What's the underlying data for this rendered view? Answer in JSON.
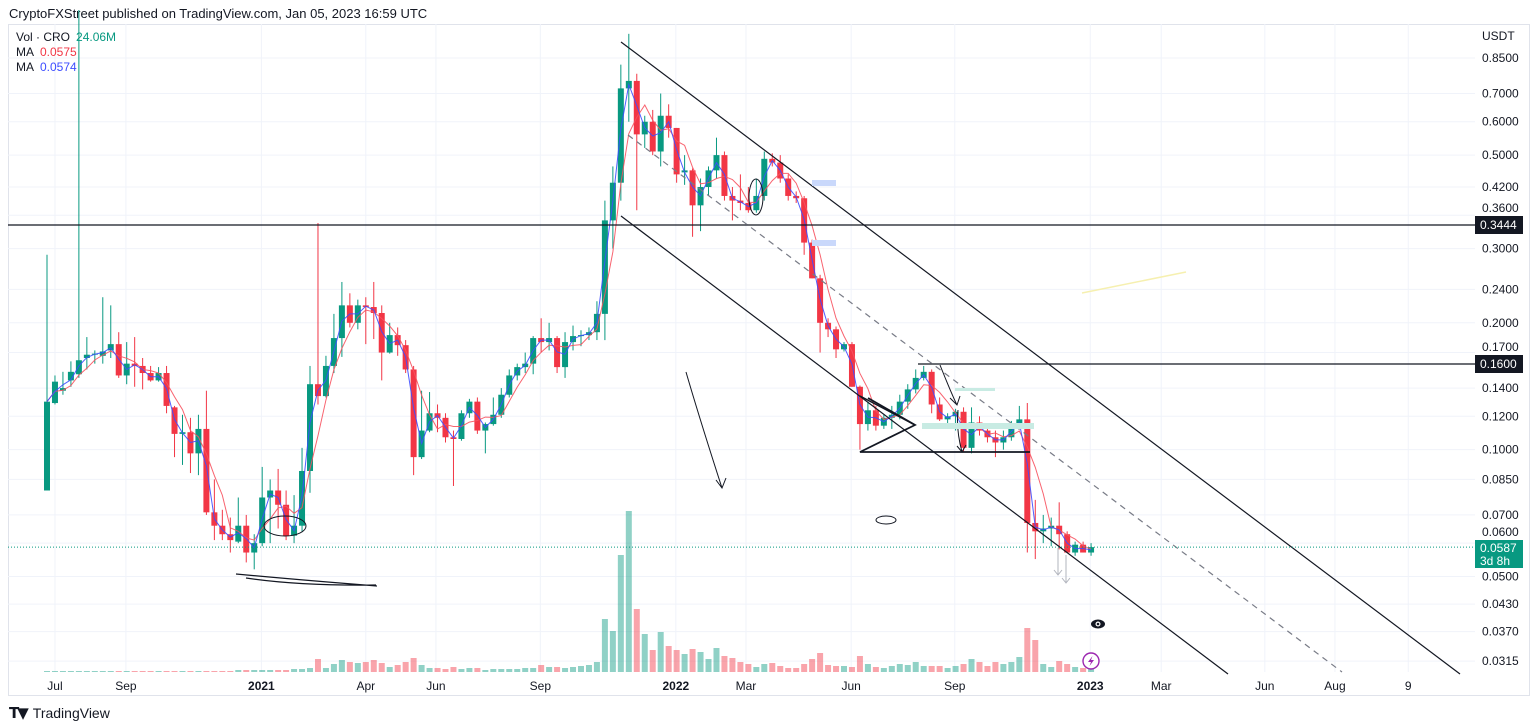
{
  "header": {
    "title": "CryptoFXStreet published on TradingView.com, Jan 05, 2023 16:59 UTC"
  },
  "legend": {
    "vol_label": "Vol · CRO",
    "vol_value": "24.06M",
    "ma1_label": "MA",
    "ma1_value": "0.0575",
    "ma2_label": "MA",
    "ma2_value": "0.0574"
  },
  "axis": {
    "currency": "USDT",
    "price_ticks": [
      "0.8500",
      "0.7000",
      "0.6000",
      "0.5000",
      "0.4200",
      "0.3600",
      "0.3000",
      "0.2400",
      "0.2000",
      "0.1700",
      "0.1400",
      "0.1200",
      "0.1000",
      "0.0850",
      "0.0700",
      "0.0600",
      "0.0500",
      "0.0430",
      "0.0370",
      "0.0315"
    ],
    "time_ticks": [
      {
        "label": "Jul",
        "week": 1,
        "year": false
      },
      {
        "label": "Sep",
        "week": 9.9,
        "year": false
      },
      {
        "label": "2021",
        "week": 26.9,
        "year": true
      },
      {
        "label": "Apr",
        "week": 40,
        "year": false
      },
      {
        "label": "Jun",
        "week": 48.8,
        "year": false
      },
      {
        "label": "Sep",
        "week": 61.9,
        "year": false
      },
      {
        "label": "2022",
        "week": 78.9,
        "year": true
      },
      {
        "label": "Mar",
        "week": 87.7,
        "year": false
      },
      {
        "label": "Jun",
        "week": 100.9,
        "year": false
      },
      {
        "label": "Sep",
        "week": 113.9,
        "year": false
      },
      {
        "label": "2023",
        "week": 130.9,
        "year": true
      },
      {
        "label": "Mar",
        "week": 139.8,
        "year": false
      },
      {
        "label": "Jun",
        "week": 152.8,
        "year": false
      },
      {
        "label": "Aug",
        "week": 161.6,
        "year": false
      },
      {
        "label": "9",
        "week": 170.8,
        "year": false
      }
    ]
  },
  "price_labels": {
    "level_high": {
      "value": "0.3444"
    },
    "level_low": {
      "value": "0.1600"
    },
    "last": {
      "value": "0.0587",
      "countdown": "3d 8h"
    }
  },
  "colors": {
    "up": "#089981",
    "down": "#f23645",
    "ma_red": "#f7525f",
    "ma_blue": "#3d4dff",
    "last": "#089981"
  },
  "footer": {
    "brand": "TradingView"
  },
  "chart_data": {
    "type": "candlestick",
    "symbol": "CRO/USDT",
    "interval": "1W",
    "scale": "log",
    "ylim": [
      0.0315,
      0.85
    ],
    "ohlc": [
      [
        0.08,
        0.29,
        0.08,
        0.13
      ],
      [
        0.129,
        0.15,
        0.128,
        0.145
      ],
      [
        0.138,
        0.153,
        0.135,
        0.14
      ],
      [
        0.146,
        0.162,
        0.141,
        0.153
      ],
      [
        0.151,
        1.2,
        0.148,
        0.163
      ],
      [
        0.165,
        0.185,
        0.155,
        0.168
      ],
      [
        0.168,
        0.172,
        0.16,
        0.169
      ],
      [
        0.167,
        0.23,
        0.16,
        0.171
      ],
      [
        0.172,
        0.22,
        0.165,
        0.178
      ],
      [
        0.178,
        0.19,
        0.148,
        0.15
      ],
      [
        0.15,
        0.18,
        0.143,
        0.16
      ],
      [
        0.16,
        0.185,
        0.141,
        0.158
      ],
      [
        0.158,
        0.165,
        0.139,
        0.152
      ],
      [
        0.152,
        0.158,
        0.145,
        0.146
      ],
      [
        0.146,
        0.157,
        0.145,
        0.152
      ],
      [
        0.152,
        0.158,
        0.122,
        0.127
      ],
      [
        0.126,
        0.127,
        0.096,
        0.109
      ],
      [
        0.109,
        0.121,
        0.092,
        0.11
      ],
      [
        0.11,
        0.119,
        0.088,
        0.098
      ],
      [
        0.098,
        0.121,
        0.087,
        0.112
      ],
      [
        0.112,
        0.138,
        0.07,
        0.071
      ],
      [
        0.071,
        0.085,
        0.061,
        0.066
      ],
      [
        0.066,
        0.072,
        0.061,
        0.063
      ],
      [
        0.063,
        0.069,
        0.057,
        0.061
      ],
      [
        0.0605,
        0.077,
        0.06,
        0.066
      ],
      [
        0.066,
        0.07,
        0.054,
        0.057
      ],
      [
        0.057,
        0.063,
        0.052,
        0.06
      ],
      [
        0.06,
        0.091,
        0.059,
        0.077
      ],
      [
        0.077,
        0.085,
        0.06,
        0.08
      ],
      [
        0.08,
        0.09,
        0.065,
        0.074
      ],
      [
        0.074,
        0.08,
        0.061,
        0.0625
      ],
      [
        0.0625,
        0.078,
        0.06,
        0.066
      ],
      [
        0.066,
        0.101,
        0.064,
        0.089
      ],
      [
        0.089,
        0.158,
        0.079,
        0.143
      ],
      [
        0.143,
        0.345,
        0.128,
        0.134
      ],
      [
        0.134,
        0.167,
        0.133,
        0.158
      ],
      [
        0.158,
        0.21,
        0.152,
        0.184
      ],
      [
        0.184,
        0.25,
        0.166,
        0.22
      ],
      [
        0.22,
        0.235,
        0.195,
        0.2
      ],
      [
        0.2,
        0.227,
        0.193,
        0.22
      ],
      [
        0.22,
        0.23,
        0.178,
        0.218
      ],
      [
        0.218,
        0.25,
        0.183,
        0.211
      ],
      [
        0.211,
        0.22,
        0.146,
        0.17
      ],
      [
        0.17,
        0.2,
        0.169,
        0.187
      ],
      [
        0.187,
        0.195,
        0.167,
        0.177
      ],
      [
        0.177,
        0.182,
        0.152,
        0.155
      ],
      [
        0.155,
        0.158,
        0.087,
        0.096
      ],
      [
        0.096,
        0.138,
        0.095,
        0.111
      ],
      [
        0.111,
        0.137,
        0.11,
        0.122
      ],
      [
        0.122,
        0.128,
        0.11,
        0.119
      ],
      [
        0.119,
        0.122,
        0.104,
        0.107
      ],
      [
        0.107,
        0.111,
        0.082,
        0.106
      ],
      [
        0.106,
        0.124,
        0.105,
        0.122
      ],
      [
        0.122,
        0.132,
        0.119,
        0.13
      ],
      [
        0.13,
        0.133,
        0.109,
        0.111
      ],
      [
        0.111,
        0.116,
        0.098,
        0.115
      ],
      [
        0.115,
        0.133,
        0.114,
        0.121
      ],
      [
        0.121,
        0.14,
        0.119,
        0.135
      ],
      [
        0.135,
        0.155,
        0.133,
        0.15
      ],
      [
        0.15,
        0.16,
        0.146,
        0.157
      ],
      [
        0.157,
        0.17,
        0.152,
        0.16
      ],
      [
        0.16,
        0.186,
        0.151,
        0.184
      ],
      [
        0.184,
        0.205,
        0.17,
        0.18
      ],
      [
        0.18,
        0.2,
        0.172,
        0.184
      ],
      [
        0.184,
        0.186,
        0.152,
        0.157
      ],
      [
        0.157,
        0.19,
        0.148,
        0.18
      ],
      [
        0.18,
        0.197,
        0.172,
        0.186
      ],
      [
        0.186,
        0.192,
        0.176,
        0.187
      ],
      [
        0.187,
        0.195,
        0.182,
        0.19
      ],
      [
        0.19,
        0.225,
        0.182,
        0.21
      ],
      [
        0.21,
        0.39,
        0.182,
        0.35
      ],
      [
        0.35,
        0.47,
        0.3,
        0.43
      ],
      [
        0.43,
        0.82,
        0.39,
        0.72
      ],
      [
        0.72,
        0.97,
        0.6,
        0.75
      ],
      [
        0.75,
        0.78,
        0.37,
        0.56
      ],
      [
        0.56,
        0.62,
        0.52,
        0.6
      ],
      [
        0.6,
        0.64,
        0.5,
        0.51
      ],
      [
        0.51,
        0.7,
        0.47,
        0.62
      ],
      [
        0.62,
        0.66,
        0.55,
        0.58
      ],
      [
        0.58,
        0.58,
        0.43,
        0.45
      ],
      [
        0.455,
        0.5,
        0.425,
        0.46
      ],
      [
        0.46,
        0.465,
        0.32,
        0.38
      ],
      [
        0.38,
        0.44,
        0.33,
        0.42
      ],
      [
        0.42,
        0.47,
        0.4,
        0.46
      ],
      [
        0.46,
        0.55,
        0.44,
        0.5
      ],
      [
        0.5,
        0.51,
        0.39,
        0.4
      ],
      [
        0.4,
        0.42,
        0.35,
        0.39
      ],
      [
        0.39,
        0.45,
        0.37,
        0.385
      ],
      [
        0.385,
        0.42,
        0.365,
        0.37
      ],
      [
        0.37,
        0.44,
        0.365,
        0.4
      ],
      [
        0.4,
        0.51,
        0.39,
        0.49
      ],
      [
        0.49,
        0.505,
        0.47,
        0.48
      ],
      [
        0.48,
        0.5,
        0.43,
        0.44
      ],
      [
        0.44,
        0.45,
        0.39,
        0.4
      ],
      [
        0.4,
        0.41,
        0.385,
        0.395
      ],
      [
        0.395,
        0.4,
        0.29,
        0.31
      ],
      [
        0.31,
        0.315,
        0.255,
        0.255
      ],
      [
        0.255,
        0.26,
        0.17,
        0.2
      ],
      [
        0.2,
        0.205,
        0.185,
        0.193
      ],
      [
        0.193,
        0.196,
        0.165,
        0.173
      ],
      [
        0.173,
        0.18,
        0.171,
        0.178
      ],
      [
        0.178,
        0.18,
        0.141,
        0.141
      ],
      [
        0.141,
        0.142,
        0.1,
        0.115
      ],
      [
        0.115,
        0.13,
        0.111,
        0.124
      ],
      [
        0.124,
        0.127,
        0.111,
        0.114
      ],
      [
        0.114,
        0.121,
        0.112,
        0.119
      ],
      [
        0.119,
        0.127,
        0.112,
        0.121
      ],
      [
        0.121,
        0.135,
        0.118,
        0.13
      ],
      [
        0.13,
        0.143,
        0.125,
        0.139
      ],
      [
        0.139,
        0.155,
        0.136,
        0.148
      ],
      [
        0.148,
        0.158,
        0.146,
        0.153
      ],
      [
        0.153,
        0.155,
        0.122,
        0.128
      ],
      [
        0.128,
        0.133,
        0.117,
        0.118
      ],
      [
        0.118,
        0.122,
        0.114,
        0.12
      ],
      [
        0.12,
        0.125,
        0.111,
        0.123
      ],
      [
        0.123,
        0.126,
        0.099,
        0.101
      ],
      [
        0.101,
        0.126,
        0.098,
        0.116
      ],
      [
        0.116,
        0.12,
        0.108,
        0.111
      ],
      [
        0.111,
        0.114,
        0.104,
        0.107
      ],
      [
        0.107,
        0.111,
        0.096,
        0.104
      ],
      [
        0.104,
        0.111,
        0.1,
        0.107
      ],
      [
        0.107,
        0.117,
        0.105,
        0.114
      ],
      [
        0.114,
        0.127,
        0.113,
        0.118
      ],
      [
        0.118,
        0.129,
        0.057,
        0.067
      ],
      [
        0.067,
        0.076,
        0.055,
        0.064
      ],
      [
        0.064,
        0.07,
        0.06,
        0.065
      ],
      [
        0.065,
        0.069,
        0.059,
        0.066
      ],
      [
        0.066,
        0.075,
        0.058,
        0.063
      ],
      [
        0.063,
        0.064,
        0.057,
        0.057
      ],
      [
        0.057,
        0.0605,
        0.056,
        0.0595
      ],
      [
        0.0595,
        0.0605,
        0.057,
        0.057
      ],
      [
        0.057,
        0.06,
        0.056,
        0.0587
      ]
    ],
    "volume_relative": [
      1,
      1,
      1,
      1,
      1,
      1,
      1,
      1,
      1,
      1,
      1,
      1,
      1,
      1,
      1,
      1,
      1,
      1,
      1,
      1,
      1,
      1,
      1,
      1,
      2,
      2,
      2,
      2,
      2,
      2,
      2,
      3,
      3,
      4,
      13,
      4,
      8,
      12,
      10,
      9,
      10,
      12,
      9,
      5,
      7,
      10,
      14,
      7,
      4,
      4,
      3,
      5,
      3,
      4,
      4,
      2,
      3,
      3,
      3,
      3,
      4,
      4,
      7,
      5,
      5,
      4,
      5,
      6,
      7,
      10,
      53,
      41,
      117,
      161,
      63,
      38,
      22,
      40,
      26,
      22,
      18,
      23,
      20,
      13,
      24,
      16,
      14,
      10,
      8,
      5,
      8,
      9,
      6,
      4,
      4,
      8,
      13,
      19,
      7,
      6,
      6,
      5,
      16,
      8,
      5,
      4,
      6,
      8,
      7,
      10,
      6,
      6,
      6,
      4,
      6,
      8,
      13,
      10,
      6,
      10,
      8,
      10,
      15,
      44,
      32,
      8,
      5,
      11,
      8,
      5,
      4,
      3
    ],
    "horizontal_levels": [
      0.3444,
      0.16
    ],
    "last_price": 0.0587
  }
}
